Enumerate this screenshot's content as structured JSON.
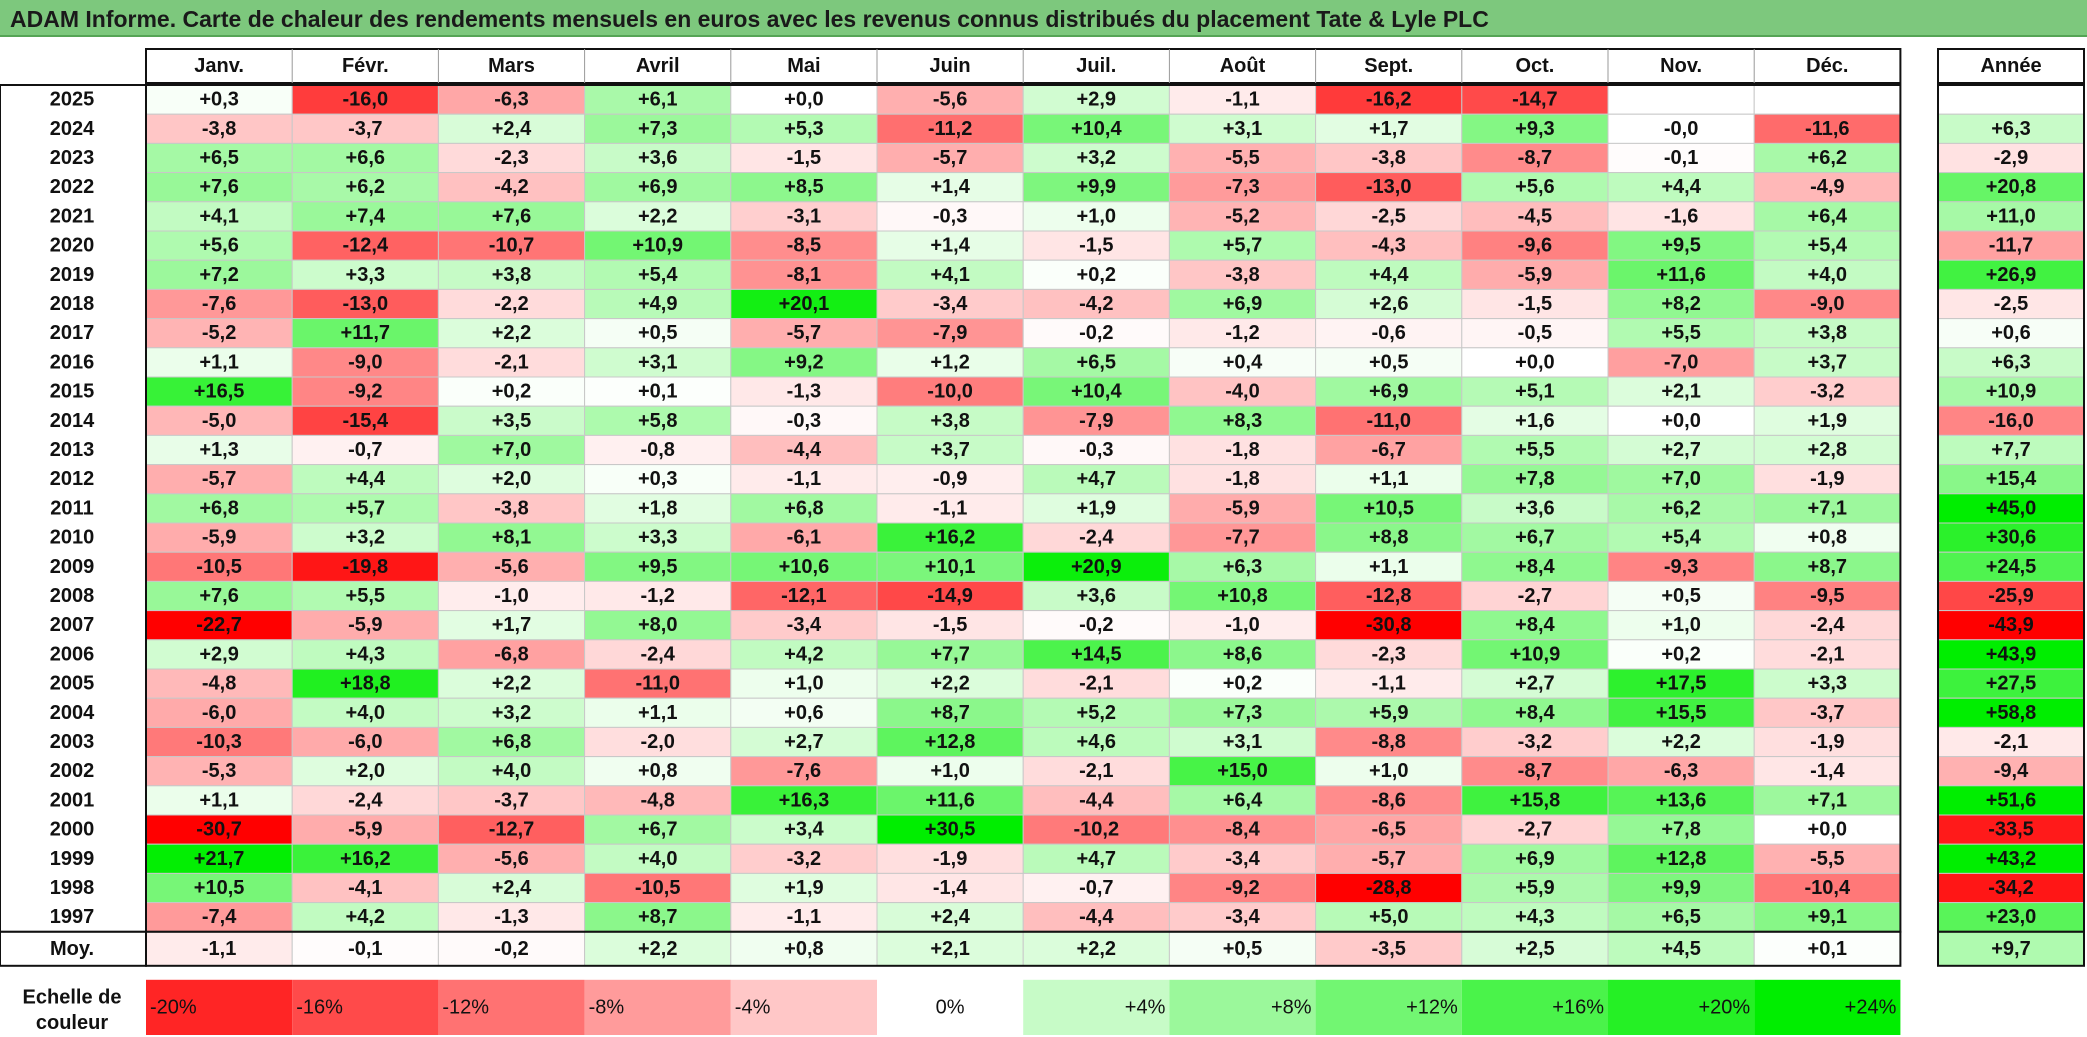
{
  "title": "ADAM Informe. Carte de chaleur des rendements mensuels en euros avec les revenus connus distribués du placement Tate & Lyle PLC",
  "chart_data": {
    "type": "heatmap",
    "months": [
      "Janv.",
      "Févr.",
      "Mars",
      "Avril",
      "Mai",
      "Juin",
      "Juil.",
      "Août",
      "Sept.",
      "Oct.",
      "Nov.",
      "Déc."
    ],
    "annual_header": "Année",
    "average_label": "Moy.",
    "rows": [
      {
        "year": "2025",
        "values": [
          "+0,3",
          "-16,0",
          "-6,3",
          "+6,1",
          "+0,0",
          "-5,6",
          "+2,9",
          "-1,1",
          "-16,2",
          "-14,7",
          "",
          ""
        ],
        "annual": ""
      },
      {
        "year": "2024",
        "values": [
          "-3,8",
          "-3,7",
          "+2,4",
          "+7,3",
          "+5,3",
          "-11,2",
          "+10,4",
          "+3,1",
          "+1,7",
          "+9,3",
          "-0,0",
          "-11,6"
        ],
        "annual": "+6,3"
      },
      {
        "year": "2023",
        "values": [
          "+6,5",
          "+6,6",
          "-2,3",
          "+3,6",
          "-1,5",
          "-5,7",
          "+3,2",
          "-5,5",
          "-3,8",
          "-8,7",
          "-0,1",
          "+6,2"
        ],
        "annual": "-2,9"
      },
      {
        "year": "2022",
        "values": [
          "+7,6",
          "+6,2",
          "-4,2",
          "+6,9",
          "+8,5",
          "+1,4",
          "+9,9",
          "-7,3",
          "-13,0",
          "+5,6",
          "+4,4",
          "-4,9"
        ],
        "annual": "+20,8"
      },
      {
        "year": "2021",
        "values": [
          "+4,1",
          "+7,4",
          "+7,6",
          "+2,2",
          "-3,1",
          "-0,3",
          "+1,0",
          "-5,2",
          "-2,5",
          "-4,5",
          "-1,6",
          "+6,4"
        ],
        "annual": "+11,0"
      },
      {
        "year": "2020",
        "values": [
          "+5,6",
          "-12,4",
          "-10,7",
          "+10,9",
          "-8,5",
          "+1,4",
          "-1,5",
          "+5,7",
          "-4,3",
          "-9,6",
          "+9,5",
          "+5,4"
        ],
        "annual": "-11,7"
      },
      {
        "year": "2019",
        "values": [
          "+7,2",
          "+3,3",
          "+3,8",
          "+5,4",
          "-8,1",
          "+4,1",
          "+0,2",
          "-3,8",
          "+4,4",
          "-5,9",
          "+11,6",
          "+4,0"
        ],
        "annual": "+26,9"
      },
      {
        "year": "2018",
        "values": [
          "-7,6",
          "-13,0",
          "-2,2",
          "+4,9",
          "+20,1",
          "-3,4",
          "-4,2",
          "+6,9",
          "+2,6",
          "-1,5",
          "+8,2",
          "-9,0"
        ],
        "annual": "-2,5"
      },
      {
        "year": "2017",
        "values": [
          "-5,2",
          "+11,7",
          "+2,2",
          "+0,5",
          "-5,7",
          "-7,9",
          "-0,2",
          "-1,2",
          "-0,6",
          "-0,5",
          "+5,5",
          "+3,8"
        ],
        "annual": "+0,6"
      },
      {
        "year": "2016",
        "values": [
          "+1,1",
          "-9,0",
          "-2,1",
          "+3,1",
          "+9,2",
          "+1,2",
          "+6,5",
          "+0,4",
          "+0,5",
          "+0,0",
          "-7,0",
          "+3,7"
        ],
        "annual": "+6,3"
      },
      {
        "year": "2015",
        "values": [
          "+16,5",
          "-9,2",
          "+0,2",
          "+0,1",
          "-1,3",
          "-10,0",
          "+10,4",
          "-4,0",
          "+6,9",
          "+5,1",
          "+2,1",
          "-3,2"
        ],
        "annual": "+10,9"
      },
      {
        "year": "2014",
        "values": [
          "-5,0",
          "-15,4",
          "+3,5",
          "+5,8",
          "-0,3",
          "+3,8",
          "-7,9",
          "+8,3",
          "-11,0",
          "+1,6",
          "+0,0",
          "+1,9"
        ],
        "annual": "-16,0"
      },
      {
        "year": "2013",
        "values": [
          "+1,3",
          "-0,7",
          "+7,0",
          "-0,8",
          "-4,4",
          "+3,7",
          "-0,3",
          "-1,8",
          "-6,7",
          "+5,5",
          "+2,7",
          "+2,8"
        ],
        "annual": "+7,7"
      },
      {
        "year": "2012",
        "values": [
          "-5,7",
          "+4,4",
          "+2,0",
          "+0,3",
          "-1,1",
          "-0,9",
          "+4,7",
          "-1,8",
          "+1,1",
          "+7,8",
          "+7,0",
          "-1,9"
        ],
        "annual": "+15,4"
      },
      {
        "year": "2011",
        "values": [
          "+6,8",
          "+5,7",
          "-3,8",
          "+1,8",
          "+6,8",
          "-1,1",
          "+1,9",
          "-5,9",
          "+10,5",
          "+3,6",
          "+6,2",
          "+7,1"
        ],
        "annual": "+45,0"
      },
      {
        "year": "2010",
        "values": [
          "-5,9",
          "+3,2",
          "+8,1",
          "+3,3",
          "-6,1",
          "+16,2",
          "-2,4",
          "-7,7",
          "+8,8",
          "+6,7",
          "+5,4",
          "+0,8"
        ],
        "annual": "+30,6"
      },
      {
        "year": "2009",
        "values": [
          "-10,5",
          "-19,8",
          "-5,6",
          "+9,5",
          "+10,6",
          "+10,1",
          "+20,9",
          "+6,3",
          "+1,1",
          "+8,4",
          "-9,3",
          "+8,7"
        ],
        "annual": "+24,5"
      },
      {
        "year": "2008",
        "values": [
          "+7,6",
          "+5,5",
          "-1,0",
          "-1,2",
          "-12,1",
          "-14,9",
          "+3,6",
          "+10,8",
          "-12,8",
          "-2,7",
          "+0,5",
          "-9,5"
        ],
        "annual": "-25,9"
      },
      {
        "year": "2007",
        "values": [
          "-22,7",
          "-5,9",
          "+1,7",
          "+8,0",
          "-3,4",
          "-1,5",
          "-0,2",
          "-1,0",
          "-30,8",
          "+8,4",
          "+1,0",
          "-2,4"
        ],
        "annual": "-43,9"
      },
      {
        "year": "2006",
        "values": [
          "+2,9",
          "+4,3",
          "-6,8",
          "-2,4",
          "+4,2",
          "+7,7",
          "+14,5",
          "+8,6",
          "-2,3",
          "+10,9",
          "+0,2",
          "-2,1"
        ],
        "annual": "+43,9"
      },
      {
        "year": "2005",
        "values": [
          "-4,8",
          "+18,8",
          "+2,2",
          "-11,0",
          "+1,0",
          "+2,2",
          "-2,1",
          "+0,2",
          "-1,1",
          "+2,7",
          "+17,5",
          "+3,3"
        ],
        "annual": "+27,5"
      },
      {
        "year": "2004",
        "values": [
          "-6,0",
          "+4,0",
          "+3,2",
          "+1,1",
          "+0,6",
          "+8,7",
          "+5,2",
          "+7,3",
          "+5,9",
          "+8,4",
          "+15,5",
          "-3,7"
        ],
        "annual": "+58,8"
      },
      {
        "year": "2003",
        "values": [
          "-10,3",
          "-6,0",
          "+6,8",
          "-2,0",
          "+2,7",
          "+12,8",
          "+4,6",
          "+3,1",
          "-8,8",
          "-3,2",
          "+2,2",
          "-1,9"
        ],
        "annual": "-2,1"
      },
      {
        "year": "2002",
        "values": [
          "-5,3",
          "+2,0",
          "+4,0",
          "+0,8",
          "-7,6",
          "+1,0",
          "-2,1",
          "+15,0",
          "+1,0",
          "-8,7",
          "-6,3",
          "-1,4"
        ],
        "annual": "-9,4"
      },
      {
        "year": "2001",
        "values": [
          "+1,1",
          "-2,4",
          "-3,7",
          "-4,8",
          "+16,3",
          "+11,6",
          "-4,4",
          "+6,4",
          "-8,6",
          "+15,8",
          "+13,6",
          "+7,1"
        ],
        "annual": "+51,6"
      },
      {
        "year": "2000",
        "values": [
          "-30,7",
          "-5,9",
          "-12,7",
          "+6,7",
          "+3,4",
          "+30,5",
          "-10,2",
          "-8,4",
          "-6,5",
          "-2,7",
          "+7,8",
          "+0,0"
        ],
        "annual": "-33,5"
      },
      {
        "year": "1999",
        "values": [
          "+21,7",
          "+16,2",
          "-5,6",
          "+4,0",
          "-3,2",
          "-1,9",
          "+4,7",
          "-3,4",
          "-5,7",
          "+6,9",
          "+12,8",
          "-5,5"
        ],
        "annual": "+43,2"
      },
      {
        "year": "1998",
        "values": [
          "+10,5",
          "-4,1",
          "+2,4",
          "-10,5",
          "+1,9",
          "-1,4",
          "-0,7",
          "-9,2",
          "-28,8",
          "+5,9",
          "+9,9",
          "-10,4"
        ],
        "annual": "-34,2"
      },
      {
        "year": "1997",
        "values": [
          "-7,4",
          "+4,2",
          "-1,3",
          "+8,7",
          "-1,1",
          "+2,4",
          "-4,4",
          "-3,4",
          "+5,0",
          "+4,3",
          "+6,5",
          "+9,1"
        ],
        "annual": "+23,0"
      }
    ],
    "average": {
      "values": [
        "-1,1",
        "-0,1",
        "-0,2",
        "+2,2",
        "+0,8",
        "+2,1",
        "+2,2",
        "+0,5",
        "-3,5",
        "+2,5",
        "+4,5",
        "+0,1"
      ],
      "annual": "+9,7"
    },
    "scale_label_line1": "Echelle de",
    "scale_label_line2": "couleur",
    "scale": [
      "-20%",
      "-16%",
      "-12%",
      "-8%",
      "-4%",
      "0%",
      "+4%",
      "+8%",
      "+12%",
      "+16%",
      "+20%",
      "+24%"
    ],
    "colors": {
      "title_bar": "#7dc87d",
      "negative_max": "#ff0000",
      "neutral": "#ffffff",
      "positive_max": "#00ee00"
    }
  }
}
